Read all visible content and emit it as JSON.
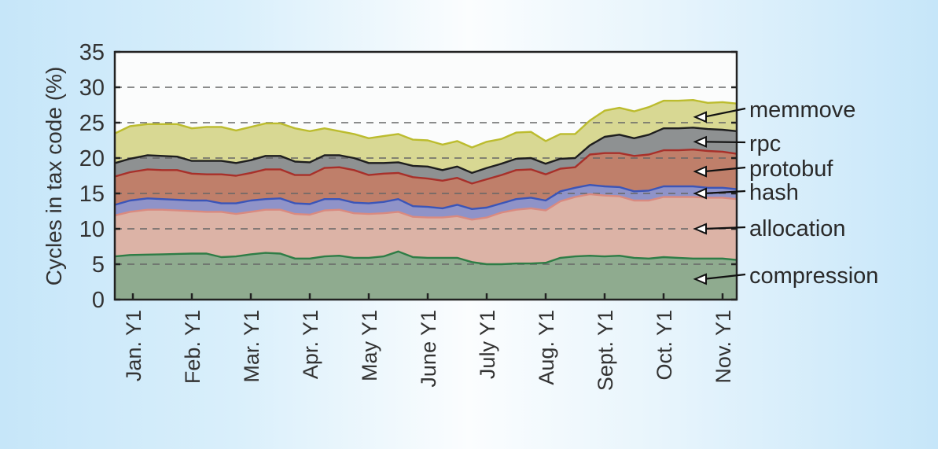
{
  "chart_data": {
    "type": "area",
    "stacked": true,
    "title": "",
    "ylabel": "Cycles in tax code (%)",
    "xlabel": "",
    "ylim": [
      0,
      35
    ],
    "yticks": [
      "0",
      "5",
      "10",
      "15",
      "20",
      "25",
      "30",
      "35"
    ],
    "ytick_values": [
      0,
      5,
      10,
      15,
      20,
      25,
      30,
      35
    ],
    "grid": "horizontal dashed",
    "categories": [
      "Jan. Y1",
      "Feb. Y1",
      "Mar. Y1",
      "Apr. Y1",
      "May Y1",
      "June Y1",
      "July Y1",
      "Aug. Y1",
      "Sept. Y1",
      "Oct. Y1",
      "Nov. Y1"
    ],
    "xlim": [
      -0.3,
      10.3
    ],
    "x": [
      -0.3,
      -0.05,
      0.25,
      0.5,
      0.75,
      1.0,
      1.25,
      1.5,
      1.75,
      2.0,
      2.25,
      2.5,
      2.75,
      3.0,
      3.25,
      3.5,
      3.75,
      4.0,
      4.25,
      4.5,
      4.75,
      5.0,
      5.25,
      5.5,
      5.75,
      6.0,
      6.25,
      6.5,
      6.75,
      7.0,
      7.25,
      7.5,
      7.75,
      8.0,
      8.25,
      8.5,
      8.75,
      9.0,
      9.25,
      9.5,
      9.75,
      10.0,
      10.3
    ],
    "legend_position": "right",
    "series": [
      {
        "name": "compression",
        "color": "#8fab8f",
        "line": "#2e7d46",
        "cumulative": [
          6.1,
          6.3,
          6.35,
          6.4,
          6.45,
          6.5,
          6.5,
          6.0,
          6.1,
          6.4,
          6.6,
          6.5,
          5.8,
          5.8,
          6.1,
          6.2,
          5.9,
          5.9,
          6.1,
          6.8,
          6.0,
          5.9,
          5.9,
          5.9,
          5.3,
          5.0,
          5.0,
          5.1,
          5.1,
          5.2,
          5.9,
          6.1,
          6.2,
          6.1,
          6.2,
          5.9,
          5.8,
          6.0,
          5.9,
          5.8,
          5.8,
          5.8,
          5.6
        ]
      },
      {
        "name": "allocation",
        "color": "#dcb3a6",
        "line": "#d98a80",
        "cumulative": [
          11.9,
          12.4,
          12.7,
          12.7,
          12.6,
          12.5,
          12.4,
          12.4,
          12.1,
          12.4,
          12.7,
          12.7,
          12.1,
          12.0,
          12.6,
          12.7,
          12.2,
          12.1,
          12.2,
          12.4,
          11.7,
          11.6,
          11.6,
          11.8,
          11.3,
          11.6,
          12.3,
          12.7,
          12.9,
          12.6,
          13.9,
          14.5,
          14.9,
          14.7,
          14.6,
          14.0,
          14.0,
          14.5,
          14.5,
          14.5,
          14.4,
          14.4,
          14.2
        ]
      },
      {
        "name": "hash",
        "color": "#8f93c8",
        "line": "#3b55b8",
        "cumulative": [
          13.4,
          14.0,
          14.3,
          14.2,
          14.1,
          14.0,
          14.0,
          13.6,
          13.6,
          14.0,
          14.2,
          14.3,
          13.6,
          13.5,
          14.2,
          14.2,
          13.7,
          13.6,
          13.8,
          14.2,
          13.2,
          13.1,
          12.9,
          13.4,
          12.8,
          13.0,
          13.6,
          14.2,
          14.4,
          14.0,
          15.3,
          15.8,
          16.2,
          16.0,
          15.9,
          15.3,
          15.4,
          16.0,
          16.0,
          16.0,
          15.8,
          15.8,
          15.6
        ]
      },
      {
        "name": "protobuf",
        "color": "#bf7f6a",
        "line": "#a8302a",
        "cumulative": [
          17.4,
          18.0,
          18.4,
          18.3,
          18.3,
          17.8,
          17.7,
          17.7,
          17.5,
          17.9,
          18.4,
          18.4,
          17.6,
          17.6,
          18.6,
          18.7,
          18.3,
          17.6,
          17.8,
          17.9,
          17.3,
          17.1,
          16.8,
          17.2,
          16.4,
          17.0,
          17.6,
          18.3,
          18.4,
          17.7,
          18.5,
          18.7,
          20.5,
          20.7,
          20.7,
          20.3,
          20.5,
          21.1,
          21.1,
          21.2,
          21.0,
          20.9,
          20.6
        ]
      },
      {
        "name": "rpc",
        "color": "#8e9192",
        "line": "#1e1e1e",
        "cumulative": [
          19.3,
          19.9,
          20.4,
          20.3,
          20.2,
          19.6,
          19.6,
          19.6,
          19.3,
          19.7,
          20.3,
          20.3,
          19.5,
          19.4,
          20.4,
          20.4,
          20.0,
          19.3,
          19.3,
          19.4,
          18.9,
          18.8,
          18.3,
          18.8,
          17.9,
          18.6,
          19.2,
          19.9,
          20.0,
          19.2,
          19.9,
          20.0,
          21.8,
          23.0,
          23.3,
          22.8,
          23.3,
          24.2,
          24.2,
          24.3,
          24.1,
          24.0,
          23.8
        ]
      },
      {
        "name": "memmove",
        "color": "#d8d893",
        "line": "#bcbc2e",
        "cumulative": [
          23.5,
          24.5,
          24.8,
          24.8,
          24.8,
          24.2,
          24.4,
          24.4,
          23.9,
          24.4,
          24.9,
          24.9,
          24.2,
          23.8,
          24.2,
          23.8,
          23.4,
          22.8,
          23.1,
          23.4,
          22.6,
          22.5,
          21.9,
          22.4,
          21.5,
          22.3,
          22.7,
          23.6,
          23.7,
          22.4,
          23.4,
          23.4,
          25.3,
          26.7,
          27.1,
          26.6,
          27.2,
          28.1,
          28.1,
          28.2,
          27.8,
          27.9,
          27.7
        ]
      }
    ],
    "annotations": [
      {
        "label": "memmove",
        "value": 25.8
      },
      {
        "label": "rpc",
        "value": 22.3
      },
      {
        "label": "protobuf",
        "value": 18.1
      },
      {
        "label": "hash",
        "value": 15.0
      },
      {
        "label": "allocation",
        "value": 10.0
      },
      {
        "label": "compression",
        "value": 2.9
      }
    ]
  }
}
